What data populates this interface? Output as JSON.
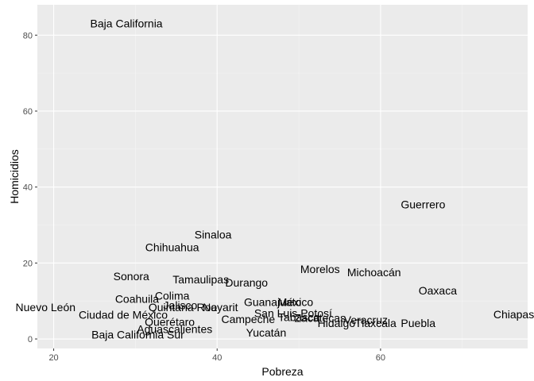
{
  "chart_data": {
    "type": "scatter",
    "title": "",
    "xlabel": "Pobreza",
    "ylabel": "Homicidios",
    "xlim": [
      18,
      78
    ],
    "ylim": [
      -2.5,
      88
    ],
    "x_ticks": [
      20,
      40,
      60
    ],
    "y_ticks": [
      0,
      20,
      40,
      60,
      80
    ],
    "x_tick_labels": [
      "20",
      "40",
      "60"
    ],
    "y_tick_labels": [
      "0",
      "20",
      "40",
      "60",
      "80"
    ],
    "grid": true,
    "legend": "none",
    "colors": {
      "panel_background": "#ebebeb",
      "major_grid": "#ffffff",
      "minor_grid": "#f5f5f5",
      "label_text": "#000000",
      "tick_text": "#4d4d4d"
    },
    "points": [
      {
        "label": "Baja California",
        "x": 28.9,
        "y": 83.1
      },
      {
        "label": "Guerrero",
        "x": 65.2,
        "y": 35.4
      },
      {
        "label": "Sinaloa",
        "x": 39.5,
        "y": 27.5
      },
      {
        "label": "Chihuahua",
        "x": 34.5,
        "y": 24.2
      },
      {
        "label": "Morelos",
        "x": 52.6,
        "y": 18.4
      },
      {
        "label": "Michoacán",
        "x": 59.2,
        "y": 17.6
      },
      {
        "label": "Sonora",
        "x": 29.5,
        "y": 16.5
      },
      {
        "label": "Tamaulipas",
        "x": 38.0,
        "y": 15.7
      },
      {
        "label": "Durango",
        "x": 43.6,
        "y": 14.8
      },
      {
        "label": "Oaxaca",
        "x": 67.0,
        "y": 12.8
      },
      {
        "label": "Colima",
        "x": 34.5,
        "y": 11.4
      },
      {
        "label": "Coahuila",
        "x": 30.2,
        "y": 10.6
      },
      {
        "label": "Guanajuato",
        "x": 46.8,
        "y": 9.7
      },
      {
        "label": "México",
        "x": 49.6,
        "y": 9.7
      },
      {
        "label": "Jalisco",
        "x": 35.5,
        "y": 8.9
      },
      {
        "label": "Quintana Roo",
        "x": 35.8,
        "y": 8.4
      },
      {
        "label": "Nayarit",
        "x": 40.4,
        "y": 8.4
      },
      {
        "label": "Nuevo León",
        "x": 19.0,
        "y": 8.4
      },
      {
        "label": "San Luis Potosí",
        "x": 49.3,
        "y": 6.8
      },
      {
        "label": "Chiapas",
        "x": 76.3,
        "y": 6.5
      },
      {
        "label": "Ciudad de México",
        "x": 28.5,
        "y": 6.4
      },
      {
        "label": "Tabasco",
        "x": 50.0,
        "y": 5.8
      },
      {
        "label": "Zacatecas",
        "x": 52.6,
        "y": 5.5
      },
      {
        "label": "Veracruz",
        "x": 58.2,
        "y": 5.0
      },
      {
        "label": "Campeche",
        "x": 43.8,
        "y": 5.2
      },
      {
        "label": "Querétaro",
        "x": 34.2,
        "y": 4.5
      },
      {
        "label": "Hidalgo",
        "x": 54.6,
        "y": 4.2
      },
      {
        "label": "Tlaxcala",
        "x": 59.4,
        "y": 4.2
      },
      {
        "label": "Puebla",
        "x": 64.6,
        "y": 4.2
      },
      {
        "label": "Aguascalientes",
        "x": 34.8,
        "y": 2.6
      },
      {
        "label": "Yucatán",
        "x": 46.0,
        "y": 1.7
      },
      {
        "label": "Baja California Sur",
        "x": 30.3,
        "y": 1.2
      }
    ]
  }
}
